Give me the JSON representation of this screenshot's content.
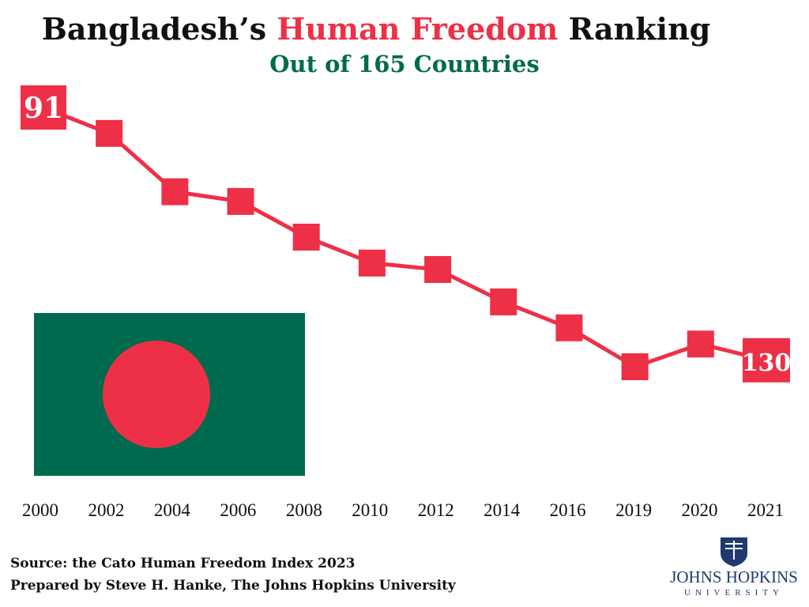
{
  "header": {
    "title_before": "Bangladesh’s ",
    "title_highlight": "Human Freedom",
    "title_after": " Ranking",
    "subtitle": "Out of 165 Countries"
  },
  "footer": {
    "source": "Source: the Cato Human Freedom Index 2023",
    "prepared": "Prepared by Steve H. Hanke, The Johns Hopkins University"
  },
  "logo": {
    "name": "JOHNS HOPKINS",
    "sub": "UNIVERSITY",
    "icon": "university-shield-icon",
    "color": "#1f3a6e"
  },
  "colors": {
    "accent": "#ee3047",
    "subtitle": "#006a4e",
    "flag_green": "#006a4e",
    "flag_red": "#ee3047"
  },
  "flag": {
    "icon": "bangladesh-flag-icon"
  },
  "chart_data": {
    "type": "line",
    "title": "Bangladesh’s Human Freedom Ranking",
    "subtitle": "Out of 165 Countries",
    "x": [
      "2000",
      "2002",
      "2004",
      "2006",
      "2008",
      "2010",
      "2012",
      "2014",
      "2016",
      "2019",
      "2020",
      "2021"
    ],
    "series": [
      {
        "values": [
          91,
          95,
          104,
          105.5,
          111,
          115,
          116,
          121,
          125,
          131,
          127.5,
          130
        ]
      }
    ],
    "data_labels": [
      {
        "x": "2000",
        "text": "91"
      },
      {
        "x": "2021",
        "text": "130"
      }
    ],
    "xlabel": "",
    "ylabel": "",
    "y_inverted": true,
    "grid": false,
    "legend": "none"
  }
}
